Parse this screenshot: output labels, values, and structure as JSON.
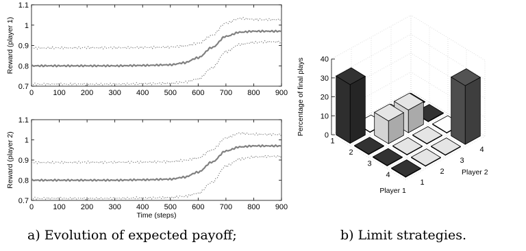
{
  "captions": {
    "a": "a) Evolution of expected payoff;",
    "b": "b) Limit strategies."
  },
  "chart_data": [
    {
      "type": "line",
      "ylabel": "Reward (player 1)",
      "xlabel": "",
      "xlim": [
        0,
        900
      ],
      "ylim": [
        0.7,
        1.1
      ],
      "xticks": [
        "0",
        "100",
        "200",
        "300",
        "400",
        "500",
        "600",
        "700",
        "800",
        "900"
      ],
      "yticks": [
        "0.7",
        "0.8",
        "0.9",
        "1",
        "1.1"
      ],
      "grid": false,
      "color": "#808080",
      "x": [
        0,
        100,
        200,
        300,
        400,
        500,
        550,
        600,
        650,
        700,
        750,
        800,
        850,
        900
      ],
      "series": [
        {
          "style": "dotted",
          "values": [
            0.888,
            0.888,
            0.889,
            0.889,
            0.89,
            0.892,
            0.898,
            0.91,
            0.95,
            1.01,
            1.033,
            1.028,
            1.027,
            1.027
          ]
        },
        {
          "style": "solid",
          "values": [
            0.8,
            0.8,
            0.8,
            0.8,
            0.802,
            0.805,
            0.815,
            0.84,
            0.89,
            0.945,
            0.965,
            0.97,
            0.97,
            0.97
          ]
        },
        {
          "style": "dotted",
          "values": [
            0.71,
            0.71,
            0.71,
            0.71,
            0.712,
            0.714,
            0.72,
            0.735,
            0.79,
            0.87,
            0.905,
            0.915,
            0.918,
            0.918
          ]
        }
      ]
    },
    {
      "type": "line",
      "ylabel": "Reward (player 2)",
      "xlabel": "Time (steps)",
      "xlim": [
        0,
        900
      ],
      "ylim": [
        0.7,
        1.1
      ],
      "xticks": [
        "0",
        "100",
        "200",
        "300",
        "400",
        "500",
        "600",
        "700",
        "800",
        "900"
      ],
      "yticks": [
        "0.7",
        "0.8",
        "0.9",
        "1",
        "1.1"
      ],
      "grid": false,
      "color": "#808080",
      "x": [
        0,
        100,
        200,
        300,
        400,
        500,
        550,
        600,
        650,
        700,
        750,
        800,
        850,
        900
      ],
      "series": [
        {
          "style": "dotted",
          "values": [
            0.888,
            0.888,
            0.889,
            0.889,
            0.89,
            0.892,
            0.898,
            0.91,
            0.95,
            1.01,
            1.033,
            1.028,
            1.027,
            1.027
          ]
        },
        {
          "style": "solid",
          "values": [
            0.8,
            0.8,
            0.8,
            0.8,
            0.802,
            0.805,
            0.815,
            0.84,
            0.89,
            0.945,
            0.965,
            0.97,
            0.97,
            0.97
          ]
        },
        {
          "style": "dotted",
          "values": [
            0.71,
            0.71,
            0.71,
            0.71,
            0.712,
            0.714,
            0.72,
            0.735,
            0.79,
            0.87,
            0.905,
            0.915,
            0.918,
            0.918
          ]
        }
      ]
    },
    {
      "type": "bar3d",
      "zlabel": "Percentage of final plays",
      "xlabel": "Player 1",
      "ylabel": "Player 2",
      "zlim": [
        0,
        40
      ],
      "zticks": [
        "0",
        "10",
        "20",
        "30",
        "40"
      ],
      "player1_ticks": [
        "1",
        "2",
        "3",
        "4"
      ],
      "player2_ticks": [
        "1",
        "2",
        "3",
        "4"
      ],
      "grid": true,
      "bars": [
        {
          "p1": 1,
          "p2": 1,
          "value": 31,
          "color": "#2e2e2e"
        },
        {
          "p1": 1,
          "p2": 2,
          "value": 0.3,
          "color": "#ebebeb"
        },
        {
          "p1": 1,
          "p2": 3,
          "value": 0.3,
          "color": "#ebebeb"
        },
        {
          "p1": 1,
          "p2": 4,
          "value": 0.3,
          "color": "#2e2e2e"
        },
        {
          "p1": 2,
          "p2": 1,
          "value": 0.3,
          "color": "#2e2e2e"
        },
        {
          "p1": 2,
          "p2": 2,
          "value": 12,
          "color": "#d4d4d4"
        },
        {
          "p1": 2,
          "p2": 3,
          "value": 12,
          "color": "#d4d4d4"
        },
        {
          "p1": 2,
          "p2": 4,
          "value": 0.3,
          "color": "#2e2e2e"
        },
        {
          "p1": 3,
          "p2": 1,
          "value": 0.3,
          "color": "#2e2e2e"
        },
        {
          "p1": 3,
          "p2": 2,
          "value": 0.3,
          "color": "#d4d4d4"
        },
        {
          "p1": 3,
          "p2": 3,
          "value": 0.3,
          "color": "#d4d4d4"
        },
        {
          "p1": 3,
          "p2": 4,
          "value": 0.3,
          "color": "#ebebeb"
        },
        {
          "p1": 4,
          "p2": 1,
          "value": 0.3,
          "color": "#2e2e2e"
        },
        {
          "p1": 4,
          "p2": 2,
          "value": 0.3,
          "color": "#d4d4d4"
        },
        {
          "p1": 4,
          "p2": 3,
          "value": 0.3,
          "color": "#d4d4d4"
        },
        {
          "p1": 4,
          "p2": 4,
          "value": 31,
          "color": "#4d4d4d"
        }
      ]
    }
  ]
}
